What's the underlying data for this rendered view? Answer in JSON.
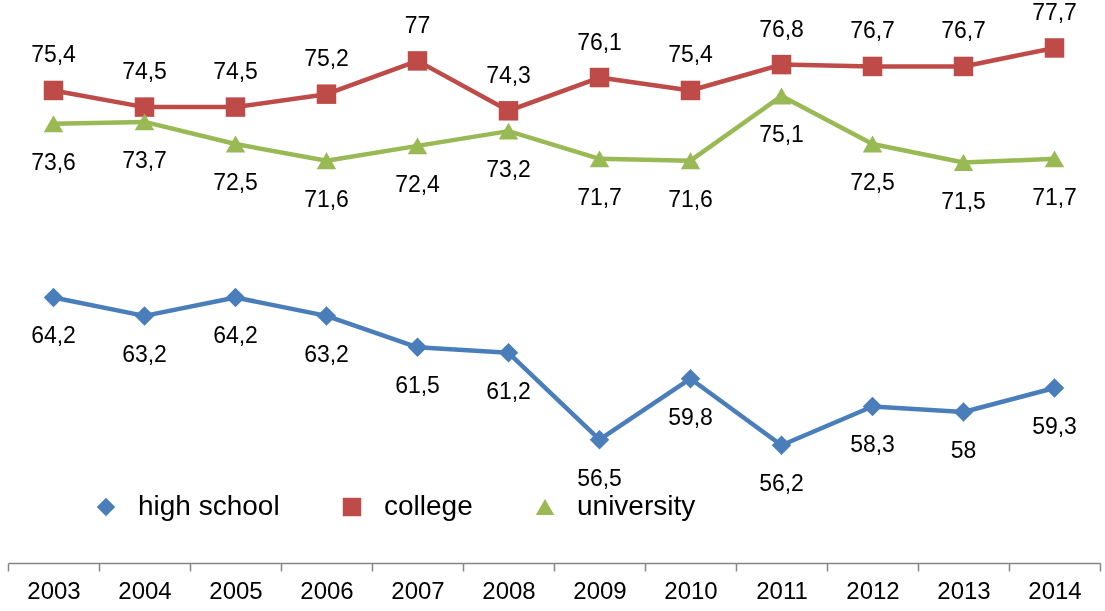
{
  "chart_data": {
    "type": "line",
    "categories": [
      "2003",
      "2004",
      "2005",
      "2006",
      "2007",
      "2008",
      "2009",
      "2010",
      "2011",
      "2012",
      "2013",
      "2014"
    ],
    "series": [
      {
        "name": "high school",
        "color": "#4a7ebb",
        "marker": "diamond",
        "values": [
          64.2,
          63.2,
          64.2,
          63.2,
          61.5,
          61.2,
          56.5,
          59.8,
          56.2,
          58.3,
          58,
          59.3
        ],
        "value_labels": [
          "64,2",
          "63,2",
          "64,2",
          "63,2",
          "61,5",
          "61,2",
          "56,5",
          "59,8",
          "56,2",
          "58,3",
          "58",
          "59,3"
        ]
      },
      {
        "name": "college",
        "color": "#be4b48",
        "marker": "square",
        "values": [
          75.4,
          74.5,
          74.5,
          75.2,
          77,
          74.3,
          76.1,
          75.4,
          76.8,
          76.7,
          76.7,
          77.7
        ],
        "value_labels": [
          "75,4",
          "74,5",
          "74,5",
          "75,2",
          "77",
          "74,3",
          "76,1",
          "75,4",
          "76,8",
          "76,7",
          "76,7",
          "77,7"
        ]
      },
      {
        "name": "university",
        "color": "#98b954",
        "marker": "triangle",
        "values": [
          73.6,
          73.7,
          72.5,
          71.6,
          72.4,
          73.2,
          71.7,
          71.6,
          75.1,
          72.5,
          71.5,
          71.7
        ],
        "value_labels": [
          "73,6",
          "73,7",
          "72,5",
          "71,6",
          "72,4",
          "73,2",
          "71,7",
          "71,6",
          "75,1",
          "72,5",
          "71,5",
          "71,7"
        ]
      }
    ],
    "tick_labels": "x",
    "legend": "bottom left"
  }
}
